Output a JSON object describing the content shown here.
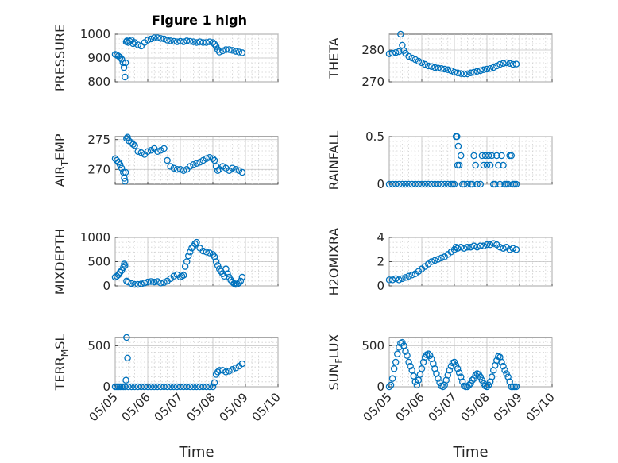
{
  "figure_title": "Figure 1 high",
  "colors": {
    "marker": "#0072BD",
    "axis": "#262626"
  },
  "chart_data": [
    {
      "type": "scatter",
      "id": "pressure",
      "ylabel": {
        "main": "PRESSURE",
        "sub": ""
      },
      "ylim": [
        800,
        1000
      ],
      "yticks": [
        "800",
        "900",
        "1000"
      ],
      "xlim": [
        0,
        5
      ],
      "xticks": [
        "05/05",
        "05/06",
        "05/07",
        "05/08",
        "05/09",
        "05/10"
      ],
      "xticks_visible": false,
      "grid": true,
      "x": [
        0.0,
        0.05,
        0.1,
        0.15,
        0.2,
        0.24,
        0.27,
        0.3,
        0.32,
        0.34,
        0.36,
        0.4,
        0.45,
        0.5,
        0.55,
        0.6,
        0.7,
        0.8,
        0.9,
        1.0,
        1.1,
        1.2,
        1.3,
        1.4,
        1.5,
        1.6,
        1.7,
        1.8,
        1.9,
        2.0,
        2.1,
        2.2,
        2.3,
        2.4,
        2.5,
        2.6,
        2.7,
        2.8,
        2.9,
        3.0,
        3.05,
        3.1,
        3.15,
        3.2,
        3.3,
        3.4,
        3.5,
        3.6,
        3.7,
        3.8,
        3.9
      ],
      "y": [
        915,
        912,
        908,
        903,
        895,
        880,
        860,
        820,
        880,
        968,
        972,
        965,
        970,
        975,
        960,
        965,
        955,
        950,
        965,
        975,
        980,
        985,
        985,
        982,
        980,
        975,
        972,
        970,
        968,
        970,
        968,
        972,
        970,
        968,
        965,
        968,
        965,
        965,
        968,
        965,
        958,
        948,
        935,
        925,
        930,
        935,
        935,
        932,
        928,
        925,
        922
      ]
    },
    {
      "type": "scatter",
      "id": "theta",
      "ylabel": {
        "main": "THETA",
        "sub": ""
      },
      "ylim": [
        270,
        285
      ],
      "yticks": [
        "270",
        "280"
      ],
      "xlim": [
        0,
        5
      ],
      "xticks": [
        "05/05",
        "05/06",
        "05/07",
        "05/08",
        "05/09",
        "05/10"
      ],
      "xticks_visible": false,
      "grid": true,
      "x": [
        0.0,
        0.1,
        0.2,
        0.3,
        0.35,
        0.4,
        0.45,
        0.5,
        0.6,
        0.7,
        0.8,
        0.9,
        1.0,
        1.1,
        1.2,
        1.3,
        1.4,
        1.5,
        1.6,
        1.7,
        1.8,
        1.9,
        2.0,
        2.1,
        2.2,
        2.3,
        2.4,
        2.5,
        2.6,
        2.7,
        2.8,
        2.9,
        3.0,
        3.1,
        3.2,
        3.3,
        3.4,
        3.5,
        3.6,
        3.7,
        3.8,
        3.9
      ],
      "y": [
        278.8,
        279.0,
        279.2,
        279.5,
        285.0,
        281.5,
        279.8,
        279.0,
        278.0,
        277.5,
        277.0,
        276.5,
        276.0,
        275.5,
        275.0,
        274.8,
        274.5,
        274.3,
        274.2,
        274.0,
        273.8,
        273.5,
        273.0,
        272.8,
        272.6,
        272.5,
        272.5,
        272.8,
        273.0,
        273.3,
        273.5,
        273.8,
        274.0,
        274.2,
        274.5,
        275.0,
        275.5,
        275.8,
        276.0,
        275.8,
        275.5,
        275.6
      ]
    },
    {
      "type": "scatter",
      "id": "air_temp",
      "ylabel": {
        "main": "AIR",
        "sub": "T",
        "rest": "EMP"
      },
      "ylim": [
        267.5,
        275.5
      ],
      "yticks": [
        "270",
        "275"
      ],
      "xlim": [
        0,
        5
      ],
      "xticks": [
        "05/05",
        "05/06",
        "05/07",
        "05/08",
        "05/09",
        "05/10"
      ],
      "xticks_visible": false,
      "grid": true,
      "x": [
        0.0,
        0.05,
        0.1,
        0.15,
        0.2,
        0.25,
        0.28,
        0.3,
        0.32,
        0.35,
        0.38,
        0.42,
        0.5,
        0.55,
        0.6,
        0.7,
        0.8,
        0.9,
        1.0,
        1.1,
        1.2,
        1.3,
        1.4,
        1.5,
        1.6,
        1.7,
        1.8,
        1.9,
        2.0,
        2.1,
        2.2,
        2.3,
        2.4,
        2.5,
        2.6,
        2.7,
        2.8,
        2.9,
        3.0,
        3.05,
        3.1,
        3.15,
        3.2,
        3.3,
        3.4,
        3.5,
        3.6,
        3.7,
        3.8,
        3.9
      ],
      "y": [
        271.8,
        271.5,
        271.2,
        270.8,
        270.2,
        269.5,
        268.5,
        268.0,
        269.5,
        275.2,
        275.4,
        274.8,
        274.5,
        274.2,
        274.0,
        273.0,
        272.8,
        272.5,
        273.0,
        273.2,
        273.5,
        273.0,
        273.2,
        273.5,
        271.5,
        270.5,
        270.2,
        270.0,
        270.0,
        269.8,
        270.0,
        270.5,
        270.8,
        271.0,
        271.2,
        271.5,
        271.8,
        272.0,
        271.8,
        271.5,
        270.5,
        269.8,
        270.0,
        270.5,
        270.2,
        269.8,
        270.2,
        270.0,
        269.8,
        269.5
      ]
    },
    {
      "type": "scatter",
      "id": "rainfall",
      "ylabel": {
        "main": "RAINFALL",
        "sub": ""
      },
      "ylim": [
        0,
        0.5
      ],
      "yticks": [
        "0",
        "0.5"
      ],
      "xlim": [
        0,
        5
      ],
      "xticks": [
        "05/05",
        "05/06",
        "05/07",
        "05/08",
        "05/09",
        "05/10"
      ],
      "xticks_visible": false,
      "grid": true,
      "x": [
        0.0,
        0.1,
        0.2,
        0.3,
        0.4,
        0.5,
        0.6,
        0.7,
        0.8,
        0.9,
        1.0,
        1.1,
        1.2,
        1.3,
        1.4,
        1.5,
        1.6,
        1.7,
        1.8,
        1.9,
        1.95,
        2.0,
        2.05,
        2.08,
        2.1,
        2.12,
        2.15,
        2.2,
        2.25,
        2.3,
        2.4,
        2.5,
        2.55,
        2.6,
        2.65,
        2.7,
        2.8,
        2.85,
        2.9,
        2.95,
        3.0,
        3.05,
        3.1,
        3.15,
        3.2,
        3.25,
        3.3,
        3.35,
        3.4,
        3.45,
        3.5,
        3.55,
        3.6,
        3.65,
        3.7,
        3.75,
        3.8,
        3.85,
        3.9
      ],
      "y": [
        0,
        0,
        0,
        0,
        0,
        0,
        0,
        0,
        0,
        0,
        0,
        0,
        0,
        0,
        0,
        0,
        0,
        0,
        0,
        0,
        0,
        0,
        0.5,
        0.5,
        0.2,
        0.4,
        0.2,
        0.3,
        0,
        0,
        0,
        0,
        0,
        0.3,
        0.2,
        0,
        0,
        0.3,
        0.2,
        0.3,
        0.2,
        0.3,
        0.2,
        0.3,
        0,
        0,
        0.3,
        0.2,
        0,
        0.3,
        0.2,
        0,
        0,
        0,
        0.3,
        0.3,
        0,
        0,
        0
      ]
    },
    {
      "type": "scatter",
      "id": "mixdepth",
      "ylabel": {
        "main": "MIXDEPTH",
        "sub": ""
      },
      "ylim": [
        0,
        1000
      ],
      "yticks": [
        "0",
        "500",
        "1000"
      ],
      "xlim": [
        0,
        5
      ],
      "xticks": [
        "05/05",
        "05/06",
        "05/07",
        "05/08",
        "05/09",
        "05/10"
      ],
      "xticks_visible": false,
      "grid": true,
      "x": [
        0.0,
        0.05,
        0.1,
        0.15,
        0.2,
        0.25,
        0.28,
        0.3,
        0.35,
        0.4,
        0.5,
        0.6,
        0.7,
        0.8,
        0.9,
        1.0,
        1.1,
        1.2,
        1.3,
        1.4,
        1.5,
        1.6,
        1.7,
        1.8,
        1.9,
        2.0,
        2.05,
        2.1,
        2.15,
        2.2,
        2.25,
        2.3,
        2.35,
        2.4,
        2.45,
        2.5,
        2.6,
        2.7,
        2.8,
        2.9,
        3.0,
        3.05,
        3.1,
        3.15,
        3.2,
        3.25,
        3.3,
        3.35,
        3.4,
        3.45,
        3.5,
        3.55,
        3.6,
        3.65,
        3.7,
        3.75,
        3.8,
        3.85,
        3.9
      ],
      "y": [
        180,
        200,
        230,
        280,
        320,
        380,
        450,
        420,
        100,
        80,
        50,
        30,
        30,
        40,
        60,
        80,
        90,
        80,
        90,
        60,
        70,
        100,
        150,
        200,
        230,
        180,
        200,
        220,
        400,
        500,
        620,
        700,
        780,
        820,
        870,
        900,
        780,
        720,
        700,
        680,
        650,
        600,
        500,
        420,
        350,
        300,
        250,
        200,
        350,
        250,
        180,
        120,
        80,
        50,
        30,
        40,
        60,
        100,
        180
      ]
    },
    {
      "type": "scatter",
      "id": "h2omixra",
      "ylabel": {
        "main": "H2OMIXRA",
        "sub": ""
      },
      "ylim": [
        0,
        4
      ],
      "yticks": [
        "0",
        "2",
        "4"
      ],
      "xlim": [
        0,
        5
      ],
      "xticks": [
        "05/05",
        "05/06",
        "05/07",
        "05/08",
        "05/09",
        "05/10"
      ],
      "xticks_visible": false,
      "grid": true,
      "x": [
        0.0,
        0.1,
        0.2,
        0.3,
        0.4,
        0.5,
        0.6,
        0.7,
        0.8,
        0.9,
        1.0,
        1.1,
        1.2,
        1.3,
        1.4,
        1.5,
        1.6,
        1.7,
        1.8,
        1.9,
        2.0,
        2.05,
        2.1,
        2.2,
        2.3,
        2.4,
        2.5,
        2.6,
        2.7,
        2.8,
        2.9,
        3.0,
        3.1,
        3.2,
        3.3,
        3.4,
        3.5,
        3.6,
        3.7,
        3.8,
        3.9
      ],
      "y": [
        0.5,
        0.5,
        0.6,
        0.5,
        0.6,
        0.7,
        0.8,
        0.9,
        1.0,
        1.2,
        1.4,
        1.6,
        1.8,
        2.0,
        2.1,
        2.2,
        2.3,
        2.4,
        2.6,
        2.8,
        3.0,
        3.2,
        3.1,
        3.2,
        3.1,
        3.2,
        3.2,
        3.3,
        3.2,
        3.3,
        3.3,
        3.4,
        3.4,
        3.5,
        3.4,
        3.2,
        3.1,
        3.2,
        3.0,
        3.1,
        3.0
      ]
    },
    {
      "type": "scatter",
      "id": "terr_msl",
      "ylabel": {
        "main": "TERR",
        "sub": "M",
        "rest": "SL"
      },
      "ylim": [
        0,
        600
      ],
      "yticks": [
        "0",
        "500"
      ],
      "xlim": [
        0,
        5
      ],
      "xticks": [
        "05/05",
        "05/06",
        "05/07",
        "05/08",
        "05/09",
        "05/10"
      ],
      "xticks_visible": true,
      "xlabel": "Time",
      "grid": true,
      "x": [
        0.0,
        0.05,
        0.1,
        0.15,
        0.2,
        0.25,
        0.3,
        0.33,
        0.35,
        0.38,
        0.4,
        0.5,
        0.6,
        0.7,
        0.8,
        0.9,
        1.0,
        1.1,
        1.2,
        1.3,
        1.4,
        1.5,
        1.6,
        1.7,
        1.8,
        1.9,
        2.0,
        2.1,
        2.2,
        2.3,
        2.4,
        2.5,
        2.6,
        2.7,
        2.8,
        2.9,
        3.0,
        3.05,
        3.1,
        3.15,
        3.2,
        3.3,
        3.4,
        3.5,
        3.6,
        3.7,
        3.8,
        3.9
      ],
      "y": [
        0,
        0,
        0,
        0,
        0,
        0,
        0,
        80,
        620,
        350,
        0,
        0,
        0,
        0,
        0,
        0,
        0,
        0,
        0,
        0,
        0,
        0,
        0,
        0,
        0,
        0,
        0,
        0,
        0,
        0,
        0,
        0,
        0,
        0,
        0,
        0,
        0,
        50,
        150,
        180,
        200,
        200,
        180,
        190,
        210,
        230,
        250,
        280
      ]
    },
    {
      "type": "scatter",
      "id": "sun_flux",
      "ylabel": {
        "main": "SUN",
        "sub": "F",
        "rest": "LUX"
      },
      "ylim": [
        0,
        600
      ],
      "yticks": [
        "0",
        "500"
      ],
      "xlim": [
        0,
        5
      ],
      "xticks": [
        "05/05",
        "05/06",
        "05/07",
        "05/08",
        "05/09",
        "05/10"
      ],
      "xticks_visible": true,
      "xlabel": "Time",
      "grid": true,
      "x": [
        0.0,
        0.05,
        0.1,
        0.15,
        0.2,
        0.25,
        0.3,
        0.35,
        0.4,
        0.45,
        0.5,
        0.55,
        0.6,
        0.65,
        0.7,
        0.75,
        0.8,
        0.85,
        0.9,
        0.95,
        1.0,
        1.05,
        1.1,
        1.15,
        1.2,
        1.25,
        1.3,
        1.35,
        1.4,
        1.45,
        1.5,
        1.55,
        1.6,
        1.65,
        1.7,
        1.75,
        1.8,
        1.85,
        1.9,
        1.95,
        2.0,
        2.05,
        2.1,
        2.15,
        2.2,
        2.25,
        2.3,
        2.35,
        2.4,
        2.45,
        2.5,
        2.55,
        2.6,
        2.65,
        2.7,
        2.75,
        2.8,
        2.85,
        2.9,
        2.95,
        3.0,
        3.05,
        3.1,
        3.15,
        3.2,
        3.25,
        3.3,
        3.35,
        3.4,
        3.45,
        3.5,
        3.55,
        3.6,
        3.65,
        3.7,
        3.75,
        3.8,
        3.85,
        3.9
      ],
      "y": [
        0,
        20,
        100,
        220,
        300,
        400,
        480,
        530,
        540,
        500,
        430,
        380,
        300,
        250,
        200,
        130,
        60,
        20,
        80,
        150,
        220,
        300,
        360,
        390,
        400,
        380,
        340,
        280,
        220,
        160,
        100,
        50,
        10,
        0,
        20,
        80,
        140,
        200,
        250,
        290,
        300,
        260,
        220,
        170,
        120,
        60,
        10,
        0,
        0,
        20,
        40,
        80,
        100,
        140,
        160,
        150,
        120,
        80,
        40,
        10,
        0,
        20,
        60,
        120,
        200,
        260,
        320,
        370,
        360,
        300,
        250,
        200,
        160,
        120,
        60,
        0,
        0,
        0,
        0
      ]
    }
  ]
}
